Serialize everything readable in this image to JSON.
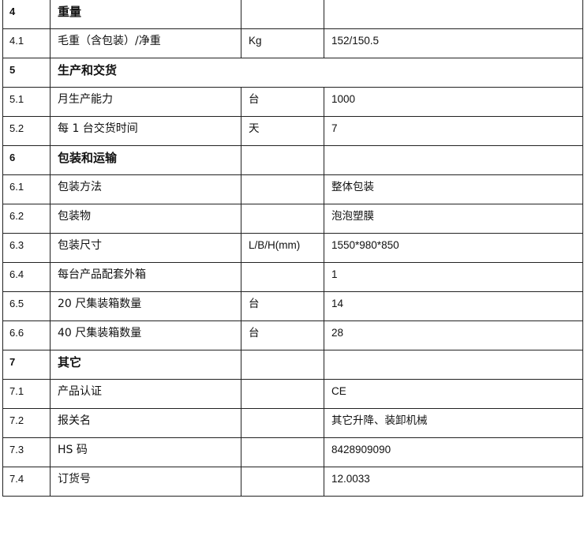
{
  "rows": [
    {
      "no": "4",
      "item": "重量",
      "unit": "",
      "value": "",
      "section": true
    },
    {
      "no": "4.1",
      "item": "毛重（含包装）/净重",
      "unit": "Kg",
      "value": "152/150.5"
    },
    {
      "no": "5",
      "item": "生产和交货",
      "section": true,
      "merged": true
    },
    {
      "no": "5.1",
      "item": "月生产能力",
      "unit": "台",
      "value": "1000"
    },
    {
      "no": "5.2",
      "item": "每 1 台交货时间",
      "unit": "天",
      "value": "7"
    },
    {
      "no": "6",
      "item": "包装和运输",
      "unit": "",
      "value": "",
      "section": true
    },
    {
      "no": "6.1",
      "item": "包装方法",
      "unit": "",
      "value": "整体包装"
    },
    {
      "no": "6.2",
      "item": "包装物",
      "unit": "",
      "value": "泡泡塑膜"
    },
    {
      "no": "6.3",
      "item": "包装尺寸",
      "unit": "L/B/H(mm)",
      "value": "1550*980*850"
    },
    {
      "no": "6.4",
      "item": "每台产品配套外箱",
      "unit": "",
      "value": "1"
    },
    {
      "no": "6.5",
      "item": "20 尺集装箱数量",
      "unit": "台",
      "value": "14"
    },
    {
      "no": "6.6",
      "item": "40 尺集装箱数量",
      "unit": "台",
      "value": "28"
    },
    {
      "no": "7",
      "item": "其它",
      "unit": "",
      "value": "",
      "section": true
    },
    {
      "no": "7.1",
      "item": "产品认证",
      "unit": "",
      "value": "CE"
    },
    {
      "no": "7.2",
      "item": "报关名",
      "unit": "",
      "value": "其它升降、装卸机械"
    },
    {
      "no": "7.3",
      "item": "HS 码",
      "unit": "",
      "value": "8428909090"
    },
    {
      "no": "7.4",
      "item": "订货号",
      "unit": "",
      "value": "12.0033"
    }
  ]
}
